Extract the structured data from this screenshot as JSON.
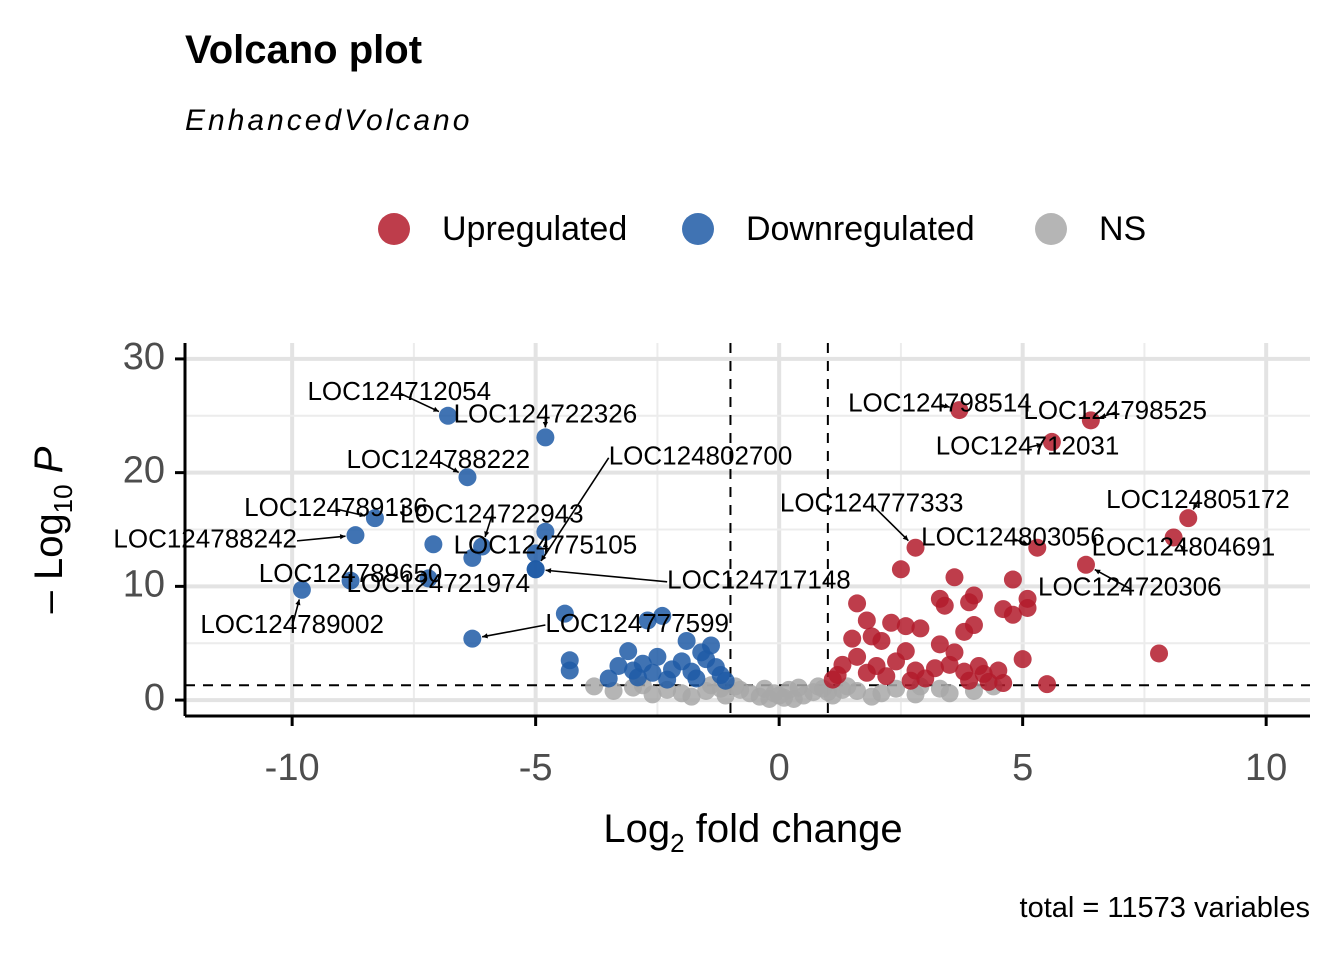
{
  "title": "Volcano plot",
  "subtitle": "EnhancedVolcano",
  "caption": "total = 11573 variables",
  "colors": {
    "up": "#b31b2c",
    "down": "#1f5aa6",
    "ns": "#a8a8a8"
  },
  "legend": [
    {
      "label": "Upregulated",
      "color": "#b31b2c"
    },
    {
      "label": "Downregulated",
      "color": "#1f5aa6"
    },
    {
      "label": "NS",
      "color": "#a8a8a8"
    }
  ],
  "chart_data": {
    "type": "scatter",
    "xlabel_base": "Log",
    "xlabel_sub": "2",
    "xlabel_rest": " fold change",
    "ylabel_prefix": "– Log",
    "ylabel_sub": "10",
    "ylabel_rest": " P",
    "xlim": [
      -12.2,
      10.9
    ],
    "ylim": [
      -1.4,
      31.4
    ],
    "xticks": [
      -10,
      -5,
      0,
      5,
      10
    ],
    "xtick_labels": [
      "-10",
      "-5",
      "0",
      "5",
      "10"
    ],
    "yticks": [
      0,
      10,
      20,
      30
    ],
    "ytick_labels": [
      "0",
      "10",
      "20",
      "30"
    ],
    "fc_cutoff": [
      -1,
      1
    ],
    "p_cutoff": 1.3,
    "grid": true,
    "legend_position": "top",
    "labeled_points": [
      {
        "gene": "LOC124712054",
        "x": -6.8,
        "y": 25.0,
        "group": "down",
        "lx": -7.8,
        "ly": 27.0
      },
      {
        "gene": "LOC124722326",
        "x": -4.8,
        "y": 23.1,
        "group": "down",
        "lx": -4.8,
        "ly": 25.0
      },
      {
        "gene": "LOC124788222",
        "x": -6.4,
        "y": 19.6,
        "group": "down",
        "lx": -7.0,
        "ly": 21.0
      },
      {
        "gene": "LOC124802700",
        "x": -5.0,
        "y": 11.5,
        "group": "down",
        "lx": -3.5,
        "ly": 21.3
      },
      {
        "gene": "LOC124789136",
        "x": -8.3,
        "y": 16.0,
        "group": "down",
        "lx": -9.1,
        "ly": 16.8
      },
      {
        "gene": "LOC124722943",
        "x": -6.1,
        "y": 13.5,
        "group": "down",
        "lx": -5.9,
        "ly": 16.2
      },
      {
        "gene": "LOC124788242",
        "x": -8.7,
        "y": 14.5,
        "group": "down",
        "lx": -9.9,
        "ly": 14.0
      },
      {
        "gene": "LOC124775105",
        "x": -4.8,
        "y": 14.8,
        "group": "down",
        "lx": -4.8,
        "ly": 13.5
      },
      {
        "gene": "LOC124789650",
        "x": -8.8,
        "y": 10.5,
        "group": "down",
        "lx": -8.8,
        "ly": 11.0
      },
      {
        "gene": "LOC124717148",
        "x": -5.0,
        "y": 11.5,
        "group": "down",
        "lx": -2.3,
        "ly": 10.4
      },
      {
        "gene": "LOC124721974",
        "x": -7.2,
        "y": 10.7,
        "group": "down",
        "lx": -7.0,
        "ly": 10.1
      },
      {
        "gene": "LOC124789002",
        "x": -9.8,
        "y": 9.7,
        "group": "down",
        "lx": -10.0,
        "ly": 6.5
      },
      {
        "gene": "LOC124777599",
        "x": -6.3,
        "y": 5.4,
        "group": "down",
        "lx": -4.8,
        "ly": 6.6
      },
      {
        "gene": "LOC124798514",
        "x": 3.7,
        "y": 25.5,
        "group": "up",
        "lx": 3.3,
        "ly": 26.0
      },
      {
        "gene": "LOC124798525",
        "x": 6.4,
        "y": 24.6,
        "group": "up",
        "lx": 6.9,
        "ly": 25.3
      },
      {
        "gene": "LOC124712031",
        "x": 5.6,
        "y": 22.7,
        "group": "up",
        "lx": 5.1,
        "ly": 22.2
      },
      {
        "gene": "LOC124805172",
        "x": 8.4,
        "y": 16.0,
        "group": "up",
        "lx": 8.6,
        "ly": 17.5
      },
      {
        "gene": "LOC124777333",
        "x": 2.8,
        "y": 13.4,
        "group": "up",
        "lx": 1.9,
        "ly": 17.2
      },
      {
        "gene": "LOC124803056",
        "x": 5.3,
        "y": 13.4,
        "group": "up",
        "lx": 4.8,
        "ly": 14.2
      },
      {
        "gene": "LOC124804691",
        "x": 8.1,
        "y": 14.3,
        "group": "up",
        "lx": 8.3,
        "ly": 13.3
      },
      {
        "gene": "LOC124720306",
        "x": 6.3,
        "y": 11.9,
        "group": "up",
        "lx": 7.2,
        "ly": 9.8
      }
    ],
    "extra_down_points": [
      [
        -7.1,
        13.7
      ],
      [
        -6.3,
        12.5
      ],
      [
        -5.0,
        12.9
      ],
      [
        -4.4,
        7.6
      ],
      [
        -4.3,
        3.5
      ],
      [
        -4.3,
        2.6
      ],
      [
        -2.7,
        7.0
      ],
      [
        -2.4,
        7.4
      ],
      [
        -1.9,
        5.2
      ],
      [
        -1.6,
        4.2
      ],
      [
        -1.5,
        3.6
      ],
      [
        -1.4,
        4.8
      ],
      [
        -3.3,
        3.0
      ],
      [
        -3.1,
        4.3
      ],
      [
        -2.8,
        3.2
      ],
      [
        -2.5,
        3.8
      ],
      [
        -2.2,
        2.7
      ],
      [
        -2.0,
        3.4
      ],
      [
        -1.8,
        2.5
      ],
      [
        -1.3,
        2.9
      ],
      [
        -1.2,
        2.2
      ],
      [
        -3.5,
        1.9
      ],
      [
        -2.9,
        2.0
      ],
      [
        -2.6,
        2.4
      ],
      [
        -2.3,
        1.8
      ],
      [
        -1.7,
        1.9
      ],
      [
        -1.1,
        1.7
      ],
      [
        -3.0,
        2.6
      ]
    ],
    "extra_up_points": [
      [
        2.5,
        11.5
      ],
      [
        3.6,
        10.8
      ],
      [
        4.8,
        10.6
      ],
      [
        3.3,
        8.9
      ],
      [
        3.4,
        8.3
      ],
      [
        3.9,
        8.6
      ],
      [
        4.0,
        9.2
      ],
      [
        4.6,
        8.0
      ],
      [
        4.8,
        7.5
      ],
      [
        5.1,
        8.9
      ],
      [
        5.1,
        8.1
      ],
      [
        7.8,
        4.1
      ],
      [
        1.6,
        8.5
      ],
      [
        1.8,
        7.0
      ],
      [
        2.3,
        6.8
      ],
      [
        2.6,
        6.5
      ],
      [
        2.9,
        6.3
      ],
      [
        3.8,
        6.0
      ],
      [
        4.0,
        6.6
      ],
      [
        1.5,
        5.4
      ],
      [
        1.9,
        5.6
      ],
      [
        2.1,
        5.2
      ],
      [
        2.6,
        4.3
      ],
      [
        3.3,
        4.9
      ],
      [
        3.6,
        4.2
      ],
      [
        5.0,
        3.6
      ],
      [
        5.5,
        1.4
      ],
      [
        4.6,
        1.5
      ],
      [
        4.3,
        1.6
      ],
      [
        4.2,
        2.3
      ],
      [
        1.3,
        3.1
      ],
      [
        1.6,
        3.8
      ],
      [
        2.0,
        3.0
      ],
      [
        2.4,
        3.4
      ],
      [
        2.8,
        2.6
      ],
      [
        3.2,
        2.8
      ],
      [
        3.5,
        3.1
      ],
      [
        3.8,
        2.5
      ],
      [
        4.1,
        3.0
      ],
      [
        1.2,
        2.2
      ],
      [
        1.8,
        2.4
      ],
      [
        2.2,
        2.1
      ],
      [
        3.0,
        1.9
      ],
      [
        4.5,
        2.6
      ],
      [
        1.1,
        1.8
      ],
      [
        2.7,
        1.7
      ],
      [
        3.9,
        1.7
      ]
    ],
    "ns_points": [
      [
        -0.2,
        0.1
      ],
      [
        0.1,
        0.2
      ],
      [
        0.3,
        0.1
      ],
      [
        -0.4,
        0.3
      ],
      [
        0.5,
        0.4
      ],
      [
        -0.6,
        0.6
      ],
      [
        0.7,
        0.7
      ],
      [
        -0.8,
        0.9
      ],
      [
        0.9,
        1.0
      ],
      [
        -0.9,
        1.2
      ],
      [
        0.8,
        1.2
      ],
      [
        -1.2,
        1.0
      ],
      [
        1.3,
        0.9
      ],
      [
        -1.5,
        0.8
      ],
      [
        1.6,
        0.8
      ],
      [
        -2.0,
        0.6
      ],
      [
        2.1,
        0.6
      ],
      [
        -2.6,
        0.5
      ],
      [
        2.8,
        0.5
      ],
      [
        -3.4,
        0.8
      ],
      [
        3.5,
        0.6
      ],
      [
        -0.1,
        0.6
      ],
      [
        0.2,
        0.9
      ],
      [
        -0.3,
        1.0
      ],
      [
        0.4,
        1.1
      ],
      [
        -1.1,
        0.4
      ],
      [
        1.1,
        0.4
      ],
      [
        -1.8,
        0.3
      ],
      [
        1.9,
        0.3
      ],
      [
        -2.3,
        0.9
      ],
      [
        2.4,
        1.0
      ],
      [
        4.0,
        0.8
      ],
      [
        -3.0,
        1.1
      ],
      [
        0.0,
        0.4
      ],
      [
        1.4,
        1.2
      ],
      [
        -1.4,
        1.3
      ],
      [
        2.9,
        1.2
      ],
      [
        -2.8,
        1.3
      ],
      [
        3.3,
        1.0
      ],
      [
        4.4,
        1.2
      ],
      [
        -3.8,
        1.2
      ],
      [
        1.0,
        0.7
      ]
    ]
  }
}
